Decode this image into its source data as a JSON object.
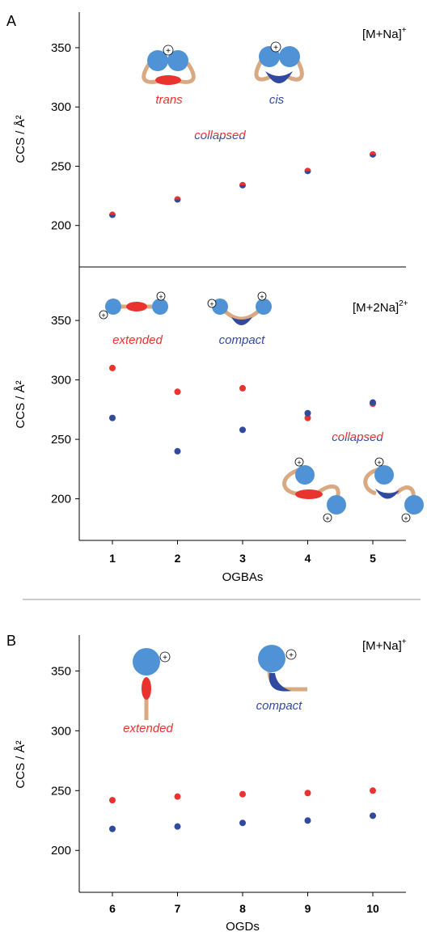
{
  "colors": {
    "red": "#e8332f",
    "blue": "#2f4a9e",
    "sphere": "#4f93d6",
    "linker": "#d9aa82",
    "axis": "#000000",
    "separator": "#999999"
  },
  "panels": {
    "a_letter": "A",
    "b_letter": "B"
  },
  "chart_data": [
    {
      "id": "A_top",
      "type": "scatter",
      "ylabel": "CCS / Å²",
      "ylim": [
        165,
        380
      ],
      "yticks": [
        200,
        250,
        300,
        350
      ],
      "x": [
        1,
        2,
        3,
        4,
        5
      ],
      "series": [
        {
          "color": "split",
          "values": [
            209,
            222,
            234,
            246,
            260
          ]
        }
      ],
      "tag_main": "[M+Na]",
      "tag_sup": "+",
      "annotations": [
        {
          "text": "trans",
          "color": "red"
        },
        {
          "text": "cis",
          "color": "blue"
        },
        {
          "text": "collapsed",
          "color": "split"
        }
      ]
    },
    {
      "id": "A_bottom",
      "type": "scatter",
      "ylabel": "CCS / Å²",
      "ylim": [
        165,
        395
      ],
      "yticks": [
        200,
        250,
        300,
        350
      ],
      "xlabel": "OGBAs",
      "xticks": [
        "1",
        "2",
        "3",
        "4",
        "5"
      ],
      "x": [
        1,
        2,
        3,
        4,
        5
      ],
      "series": [
        {
          "color": "red",
          "values": [
            310,
            290,
            293,
            268,
            280
          ]
        },
        {
          "color": "blue",
          "values": [
            268,
            240,
            258,
            272,
            281
          ]
        }
      ],
      "tag_main": "[M+2Na]",
      "tag_sup": "2+",
      "annotations": [
        {
          "text": "extended",
          "color": "red"
        },
        {
          "text": "compact",
          "color": "blue"
        },
        {
          "text": "collapsed",
          "color": "split"
        }
      ]
    },
    {
      "id": "B",
      "type": "scatter",
      "ylabel": "CCS / Å²",
      "ylim": [
        165,
        380
      ],
      "yticks": [
        200,
        250,
        300,
        350
      ],
      "xlabel": "OGDs",
      "xticks": [
        "6",
        "7",
        "8",
        "9",
        "10"
      ],
      "x": [
        6,
        7,
        8,
        9,
        10
      ],
      "series": [
        {
          "color": "red",
          "values": [
            242,
            245,
            247,
            248,
            250
          ]
        },
        {
          "color": "blue",
          "values": [
            218,
            220,
            223,
            225,
            229
          ]
        }
      ],
      "tag_main": "[M+Na]",
      "tag_sup": "+",
      "annotations": [
        {
          "text": "extended",
          "color": "red"
        },
        {
          "text": "compact",
          "color": "blue"
        }
      ]
    }
  ]
}
